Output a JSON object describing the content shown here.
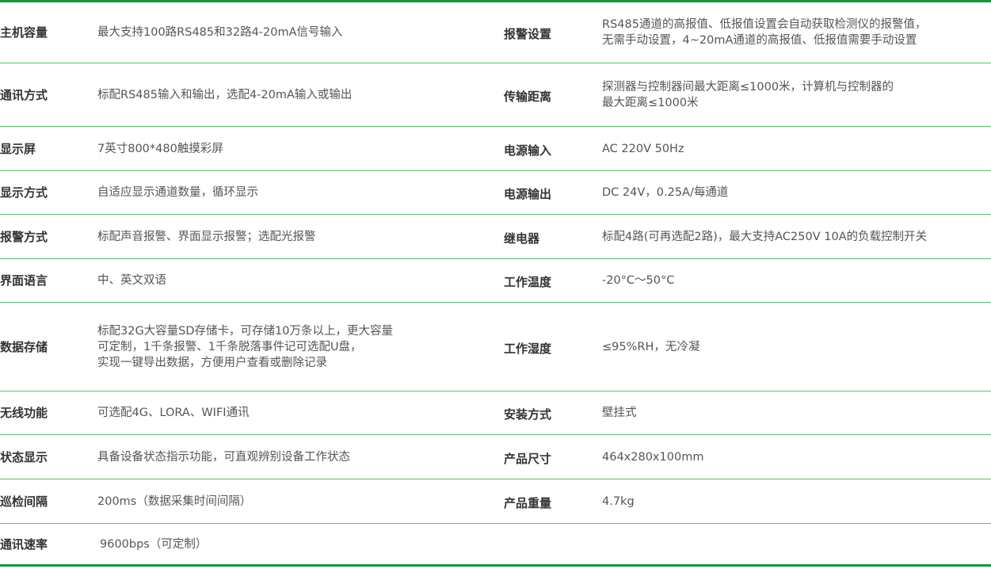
{
  "rows": [
    {
      "left_label": "主机容量",
      "left_value": "最大支持100路RS485和32路4-20mA信号输入",
      "right_label": "报警设置",
      "right_value": "RS485通道的高报值、低报值设置会自动获取检测仪的报警值，\n无需手动设置，4~20mA通道的高报值、低报值需要手动设置"
    },
    {
      "left_label": "通讯方式",
      "left_value": "标配RS485输入和输出，选配4-20mA输入或输出",
      "right_label": "传输距离",
      "right_value": "探测器与控制器间最大距离≤1000米，计算机与控制器的\n最大距离≤1000米"
    },
    {
      "left_label": "显示屏",
      "left_value": "7英寸800*480触摸彩屏",
      "right_label": "电源输入",
      "right_value": "AC 220V 50Hz"
    },
    {
      "left_label": "显示方式",
      "left_value": "自适应显示通道数量，循环显示",
      "right_label": "电源输出",
      "right_value": "DC 24V，0.25A/每通道"
    },
    {
      "left_label": "报警方式",
      "left_value": "标配声音报警、界面显示报警；选配光报警",
      "right_label": "继电器",
      "right_value": "标配4路(可再选配2路)，最大支持AC250V 10A的负载控制开关"
    },
    {
      "left_label": "界面语言",
      "left_value": "中、英文双语",
      "right_label": "工作温度",
      "right_value": "-20°C～50°C"
    },
    {
      "left_label": "数据存储",
      "left_value": "标配32G大容量SD存储卡，可存储10万条以上，更大容量\n可定制，1千条报警、1千条脱落事件记可选配U盘，\n实现一键导出数据，方便用户查看或删除记录",
      "right_label": "工作湿度",
      "right_value": "≤95%RH，无冷凝"
    },
    {
      "left_label": "无线功能",
      "left_value": "可选配4G、LORA、WIFI通讯",
      "right_label": "安装方式",
      "right_value": "壁挂式"
    },
    {
      "left_label": "状态显示",
      "left_value": "具备设备状态指示功能，可直观辨别设备工作状态",
      "right_label": "产品尺寸",
      "right_value": "464x280x100mm"
    },
    {
      "left_label": "巡检间隔",
      "left_value": "200ms（数据采集时间间隔）",
      "right_label": "产品重量",
      "right_value": "4.7kg"
    },
    {
      "left_label": "通讯速率",
      "left_value": "9600bps（可定制）",
      "right_label": "",
      "right_value": ""
    }
  ]
}
